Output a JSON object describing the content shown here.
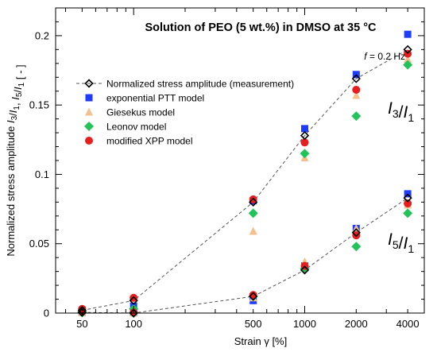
{
  "chart_data": {
    "type": "scatter",
    "title": "Solution of PEO (5 wt.%) in DMSO at 35 °C",
    "frequency_label": "f = 0.2 Hz",
    "xlabel": "Strain γ [%]",
    "ylabel": "Normalized stress amplitude I3/I1, I5/I1 [ - ]",
    "x_scale": "log",
    "xlim": [
      35,
      5000
    ],
    "ylim": [
      0,
      0.22
    ],
    "x_ticks": [
      50,
      100,
      500,
      1000,
      2000,
      4000
    ],
    "y_ticks": [
      0,
      0.05,
      0.1,
      0.15,
      0.2
    ],
    "y_tick_labels": [
      "0",
      "0.05",
      "0.1",
      "0.15",
      "0.2"
    ],
    "grid": false,
    "legend_position": "upper-left",
    "annotations": [
      "I3/I1",
      "I5/I1"
    ],
    "x": [
      50,
      100,
      500,
      1000,
      2000,
      4000
    ],
    "series": [
      {
        "name": "Normalized stress amplitude (measurement)",
        "marker": "diamond-open",
        "color": "#000000",
        "I3_I1": [
          0.002,
          0.009,
          0.08,
          0.128,
          0.169,
          0.19
        ],
        "I5_I1": [
          0.0005,
          0.0,
          0.012,
          0.031,
          0.058,
          0.083
        ]
      },
      {
        "name": "exponential PTT model",
        "marker": "square",
        "color": "#1e3cff",
        "I3_I1": [
          0.002,
          0.005,
          0.081,
          0.133,
          0.172,
          0.201
        ],
        "I5_I1": [
          0.0005,
          0.0,
          0.009,
          0.034,
          0.061,
          0.086
        ]
      },
      {
        "name": "Giesekus model",
        "marker": "triangle",
        "color": "#f5c08e",
        "I3_I1": [
          0.001,
          0.003,
          0.059,
          0.112,
          0.157,
          0.183
        ],
        "I5_I1": [
          0.0003,
          0.0,
          0.011,
          0.037,
          0.061,
          0.078
        ]
      },
      {
        "name": "Leonov model",
        "marker": "diamond",
        "color": "#22c45a",
        "I3_I1": [
          0.001,
          0.003,
          0.072,
          0.115,
          0.142,
          0.179
        ],
        "I5_I1": [
          0.0003,
          0.0,
          0.012,
          0.032,
          0.048,
          0.072
        ]
      },
      {
        "name": "modified XPP model",
        "marker": "circle",
        "color": "#e81e1e",
        "I3_I1": [
          0.003,
          0.011,
          0.082,
          0.123,
          0.161,
          0.187
        ],
        "I5_I1": [
          0.001,
          0.0005,
          0.013,
          0.034,
          0.056,
          0.079
        ]
      }
    ]
  }
}
